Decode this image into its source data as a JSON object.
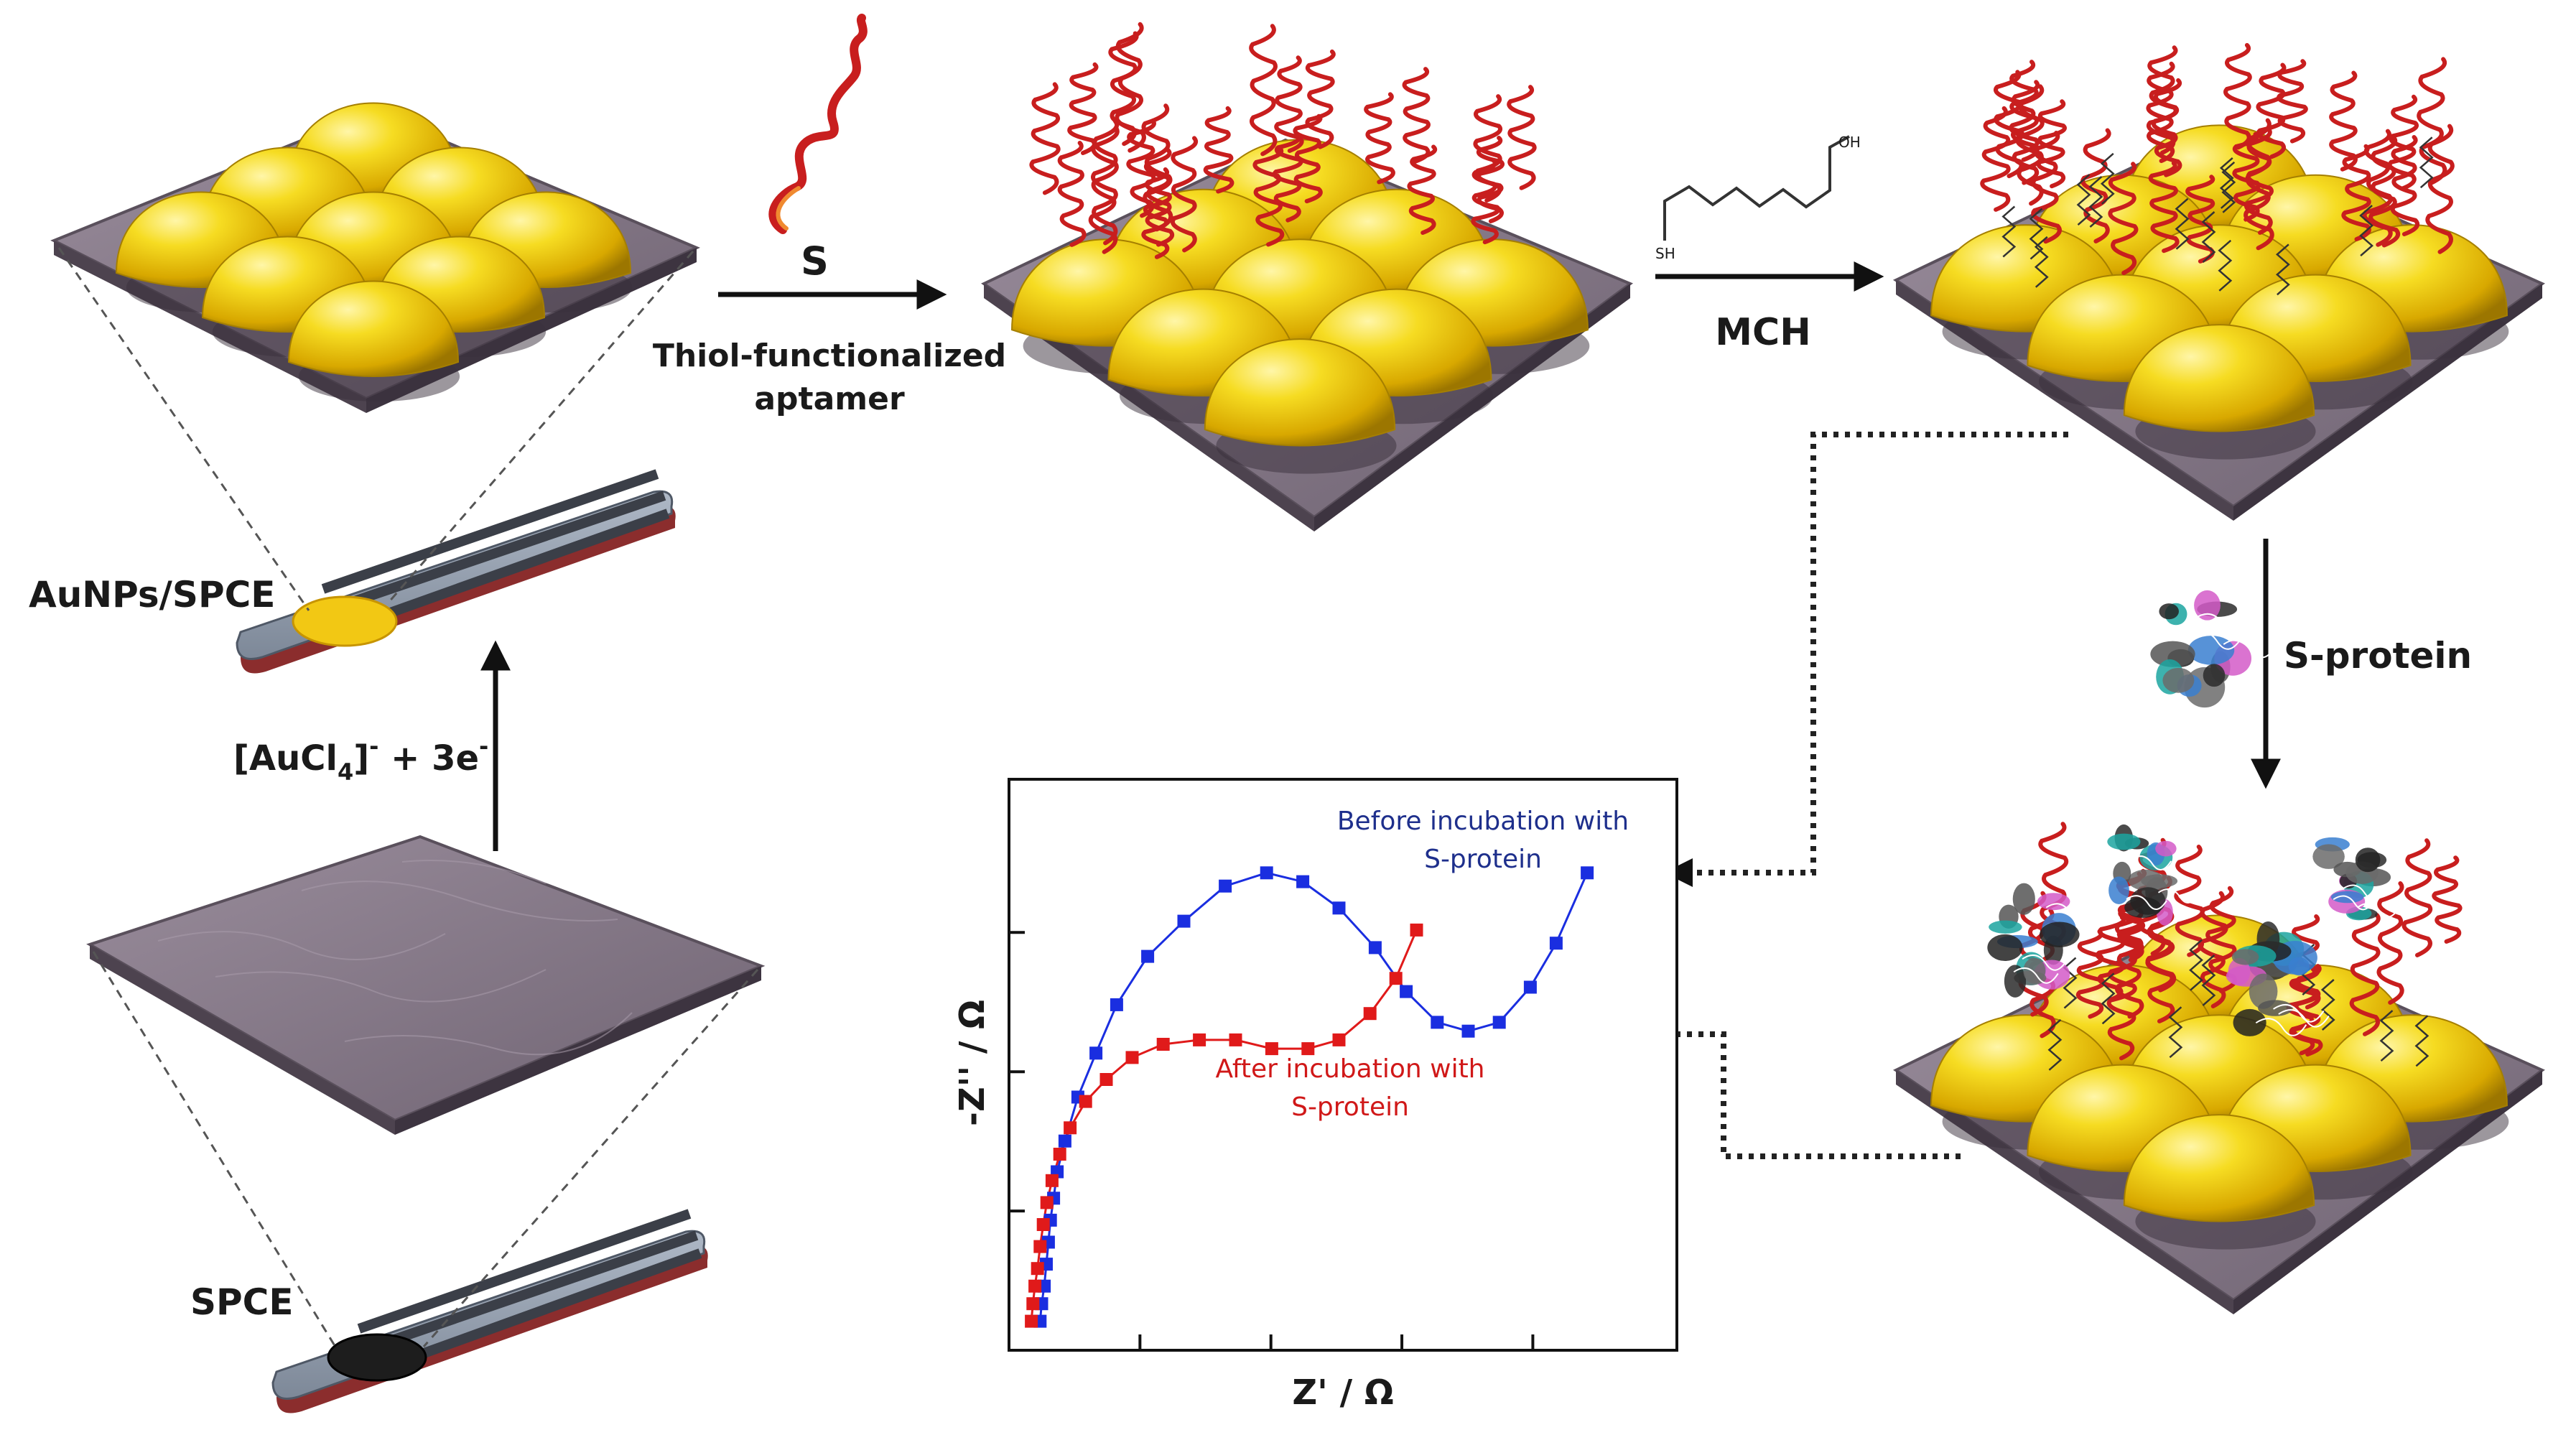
{
  "labels": {
    "aunps_spce": "AuNPs/SPCE",
    "spce": "SPCE",
    "reduction_main": "[AuCl",
    "reduction_sub": "4",
    "reduction_sup1": "-",
    "reduction_mid": " + 3e",
    "reduction_sup2": "-",
    "thiol_s": "S",
    "thiol_line1": "Thiol-functionalized",
    "thiol_line2": "aptamer",
    "mch": "MCH",
    "mch_sh": "SH",
    "mch_oh": "OH",
    "sprotein": "S-protein"
  },
  "colors": {
    "gold": "#f2d21c",
    "substrate": "#8a7d8c",
    "aptamer": "#c81e1e",
    "before": "#1a2ee0",
    "after": "#e01a1a",
    "before_text": "#1e2f8c",
    "after_text": "#d01818"
  },
  "chart_data": {
    "type": "scatter",
    "title": "",
    "xlabel": "Z' / Ω",
    "ylabel": "-Z'' / Ω",
    "xlim": [
      0,
      12
    ],
    "ylim": [
      0,
      12
    ],
    "x_tick_count": 4,
    "y_tick_count": 3,
    "series": [
      {
        "name": "Before incubation with S-protein",
        "name_line1": "Before incubation with",
        "name_line2": "S-protein",
        "color": "#1a2ee0",
        "x": [
          0.22,
          0.25,
          0.3,
          0.34,
          0.38,
          0.42,
          0.48,
          0.55,
          0.7,
          0.95,
          1.3,
          1.7,
          2.3,
          3.0,
          3.8,
          4.6,
          5.3,
          6.0,
          6.7,
          7.3,
          7.9,
          8.5,
          9.1,
          9.7,
          10.2,
          10.8
        ],
        "y": [
          0.3,
          0.7,
          1.1,
          1.6,
          2.1,
          2.6,
          3.1,
          3.7,
          4.4,
          5.4,
          6.4,
          7.5,
          8.6,
          9.4,
          10.2,
          10.5,
          10.3,
          9.7,
          8.8,
          7.8,
          7.1,
          6.9,
          7.1,
          7.9,
          8.9,
          10.5
        ]
      },
      {
        "name": "After incubation with S-protein",
        "name_line1": "After incubation with",
        "name_line2": "S-protein",
        "color": "#e01a1a",
        "x": [
          0.05,
          0.08,
          0.12,
          0.17,
          0.22,
          0.28,
          0.35,
          0.45,
          0.6,
          0.8,
          1.1,
          1.5,
          2.0,
          2.6,
          3.3,
          4.0,
          4.7,
          5.4,
          6.0,
          6.6,
          7.1,
          7.5
        ],
        "y": [
          0.3,
          0.7,
          1.1,
          1.5,
          2.0,
          2.5,
          3.0,
          3.5,
          4.1,
          4.7,
          5.3,
          5.8,
          6.3,
          6.6,
          6.7,
          6.7,
          6.5,
          6.5,
          6.7,
          7.3,
          8.1,
          9.2
        ]
      }
    ]
  }
}
